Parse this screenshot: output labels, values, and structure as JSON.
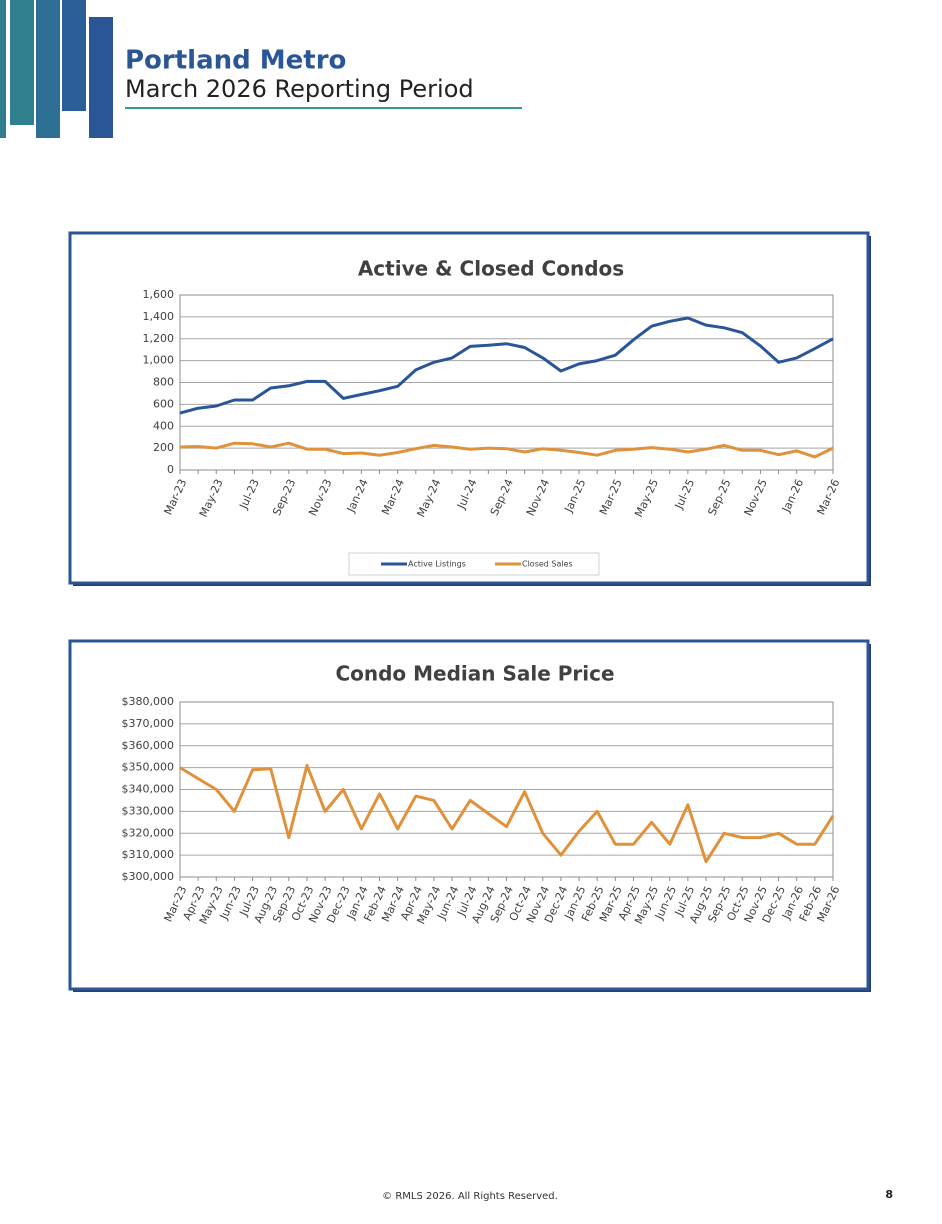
{
  "header": {
    "title": "Portland Metro",
    "subtitle": "March 2026 Reporting Period"
  },
  "footer": {
    "copyright": "© RMLS 2026. All Rights Reserved.",
    "page": "8"
  },
  "chart_data": [
    {
      "type": "line",
      "title": "Active & Closed Condos",
      "categories": [
        "Mar-23",
        null,
        "May-23",
        null,
        "Jul-23",
        null,
        "Sep-23",
        null,
        "Nov-23",
        null,
        "Jan-24",
        null,
        "Mar-24",
        null,
        "May-24",
        null,
        "Jul-24",
        null,
        "Sep-24",
        null,
        "Nov-24",
        null,
        "Jan-25",
        null,
        "Mar-25",
        null,
        "May-25",
        null,
        "Jul-25",
        null,
        "Sep-25",
        null,
        "Nov-25",
        null,
        "Jan-26",
        null,
        "Mar-26"
      ],
      "series": [
        {
          "name": "Active Listings",
          "color": "#2a5597",
          "values": [
            520,
            565,
            585,
            640,
            640,
            750,
            770,
            810,
            810,
            655,
            690,
            725,
            765,
            915,
            985,
            1025,
            1130,
            1140,
            1155,
            1120,
            1025,
            905,
            970,
            1000,
            1050,
            1190,
            1315,
            1360,
            1390,
            1325,
            1300,
            1255,
            1135,
            985,
            1025,
            1110,
            1200
          ]
        },
        {
          "name": "Closed Sales",
          "color": "#e0913b",
          "values": [
            210,
            215,
            200,
            245,
            240,
            210,
            245,
            190,
            190,
            150,
            155,
            135,
            160,
            195,
            225,
            210,
            190,
            200,
            195,
            165,
            195,
            180,
            160,
            135,
            180,
            190,
            205,
            190,
            165,
            190,
            225,
            180,
            180,
            140,
            175,
            120,
            200
          ]
        }
      ],
      "ylim": [
        0,
        1600
      ],
      "yticks": [
        0,
        200,
        400,
        600,
        800,
        {
          "value": 1000,
          "label": "1,000"
        },
        {
          "value": 1200,
          "label": "1,200"
        },
        {
          "value": 1400,
          "label": "1,400"
        },
        {
          "value": 1600,
          "label": "1,600"
        }
      ],
      "grid": true,
      "legend": "bottom"
    },
    {
      "type": "line",
      "title": "Condo Median Sale Price",
      "categories": [
        "Mar-23",
        "Apr-23",
        "May-23",
        "Jun-23",
        "Jul-23",
        "Aug-23",
        "Sep-23",
        "Oct-23",
        "Nov-23",
        "Dec-23",
        "Jan-24",
        "Feb-24",
        "Mar-24",
        "Apr-24",
        "May-24",
        "Jun-24",
        "Jul-24",
        "Aug-24",
        "Sep-24",
        "Oct-24",
        "Nov-24",
        "Dec-24",
        "Jan-25",
        "Feb-25",
        "Mar-25",
        "Apr-25",
        "May-25",
        "Jun-25",
        "Jul-25",
        "Aug-25",
        "Sep-25",
        "Oct-25",
        "Nov-25",
        "Dec-25",
        "Jan-26",
        "Feb-26",
        "Mar-26"
      ],
      "series": [
        {
          "color": "#e0913b",
          "values": [
            350000,
            345000,
            340000,
            330000,
            349000,
            349500,
            318000,
            351000,
            330000,
            340000,
            322000,
            338000,
            322000,
            337000,
            335000,
            322000,
            335000,
            329000,
            323000,
            339000,
            320000,
            310000,
            321000,
            330000,
            315000,
            315000,
            325000,
            315000,
            333000,
            307000,
            320000,
            318000,
            318000,
            320000,
            315000,
            315000,
            328000
          ]
        }
      ],
      "ylim": [
        300000,
        380000
      ],
      "yticks": [
        {
          "value": 300000,
          "label": "$300,000"
        },
        {
          "value": 310000,
          "label": "$310,000"
        },
        {
          "value": 320000,
          "label": "$320,000"
        },
        {
          "value": 330000,
          "label": "$330,000"
        },
        {
          "value": 340000,
          "label": "$340,000"
        },
        {
          "value": 350000,
          "label": "$350,000"
        },
        {
          "value": 360000,
          "label": "$360,000"
        },
        {
          "value": 370000,
          "label": "$370,000"
        },
        {
          "value": 380000,
          "label": "$380,000"
        }
      ],
      "grid": true
    }
  ]
}
